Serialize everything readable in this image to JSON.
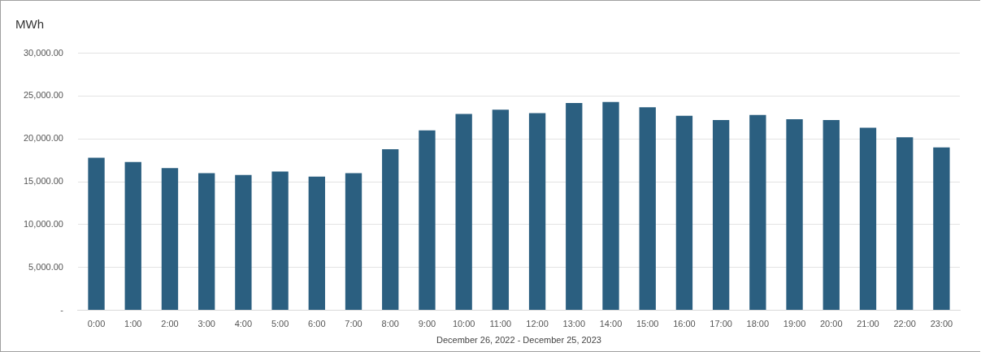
{
  "chart_data": {
    "type": "bar",
    "ylabel": "MWh",
    "xlabel": "December 26, 2022 - December 25, 2023",
    "categories": [
      "0:00",
      "1:00",
      "2:00",
      "3:00",
      "4:00",
      "5:00",
      "6:00",
      "7:00",
      "8:00",
      "9:00",
      "10:00",
      "11:00",
      "12:00",
      "13:00",
      "14:00",
      "15:00",
      "16:00",
      "17:00",
      "18:00",
      "19:00",
      "20:00",
      "21:00",
      "22:00",
      "23:00"
    ],
    "values": [
      17800,
      17300,
      16600,
      16000,
      15800,
      16200,
      15600,
      16000,
      18800,
      21000,
      22900,
      23400,
      23000,
      24200,
      24300,
      23700,
      22700,
      22200,
      22800,
      22300,
      22200,
      21300,
      20200,
      19000
    ],
    "color": "#2b5f80",
    "ylim": [
      0,
      30000
    ],
    "yticks": [
      {
        "value": 0,
        "label": "-"
      },
      {
        "value": 5000,
        "label": "5,000.00"
      },
      {
        "value": 10000,
        "label": "10,000.00"
      },
      {
        "value": 15000,
        "label": "15,000.00"
      },
      {
        "value": 20000,
        "label": "20,000.00"
      },
      {
        "value": 25000,
        "label": "25,000.00"
      },
      {
        "value": 30000,
        "label": "30,000.00"
      }
    ],
    "grid": "y",
    "legend": false
  }
}
